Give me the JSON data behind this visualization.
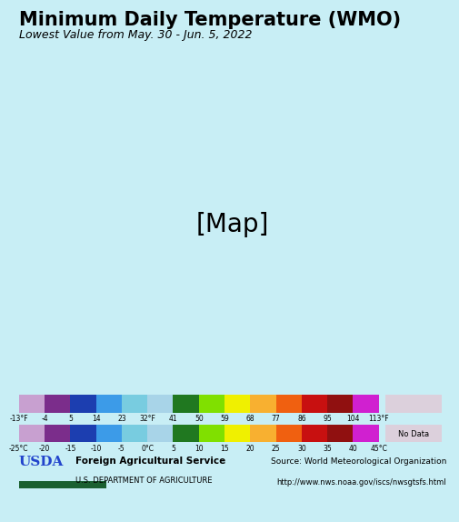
{
  "title": "Minimum Daily Temperature (WMO)",
  "subtitle": "Lowest Value from May. 30 - Jun. 5, 2022",
  "title_fontsize": 15,
  "subtitle_fontsize": 9,
  "background_color": "#c8eef5",
  "legend_colors": [
    "#c8a0d0",
    "#7b2d8b",
    "#1c3eb0",
    "#3c9be8",
    "#78cce0",
    "#a8d4e8",
    "#207820",
    "#80e000",
    "#f0f000",
    "#f8b030",
    "#f06010",
    "#c81010",
    "#901010",
    "#d020d0"
  ],
  "legend_labels_f": [
    "-13°F",
    "-4",
    "5",
    "14",
    "23",
    "32°F",
    "41",
    "50",
    "59",
    "68",
    "77",
    "86",
    "95",
    "104",
    "113°F"
  ],
  "legend_labels_c": [
    "-25°C",
    "-20",
    "-15",
    "-10",
    "-5",
    "0°C",
    "5",
    "10",
    "15",
    "20",
    "25",
    "30",
    "35",
    "40",
    "45°C"
  ],
  "no_data_color": "#dcd0dc",
  "no_data_label": "No Data",
  "footer_left_bold": "USDA",
  "footer_left_line1": "Foreign Agricultural Service",
  "footer_left_line2": "U.S. DEPARTMENT OF AGRICULTURE",
  "footer_right_line1": "Source: World Meteorological Organization",
  "footer_right_line2": "http://www.nws.noaa.gov/iscs/nwsgtsfs.html",
  "ocean_color": "#c8eef5",
  "land_no_data_color": "#dcd0dc",
  "footer_bg_color": "#ddd8dd"
}
